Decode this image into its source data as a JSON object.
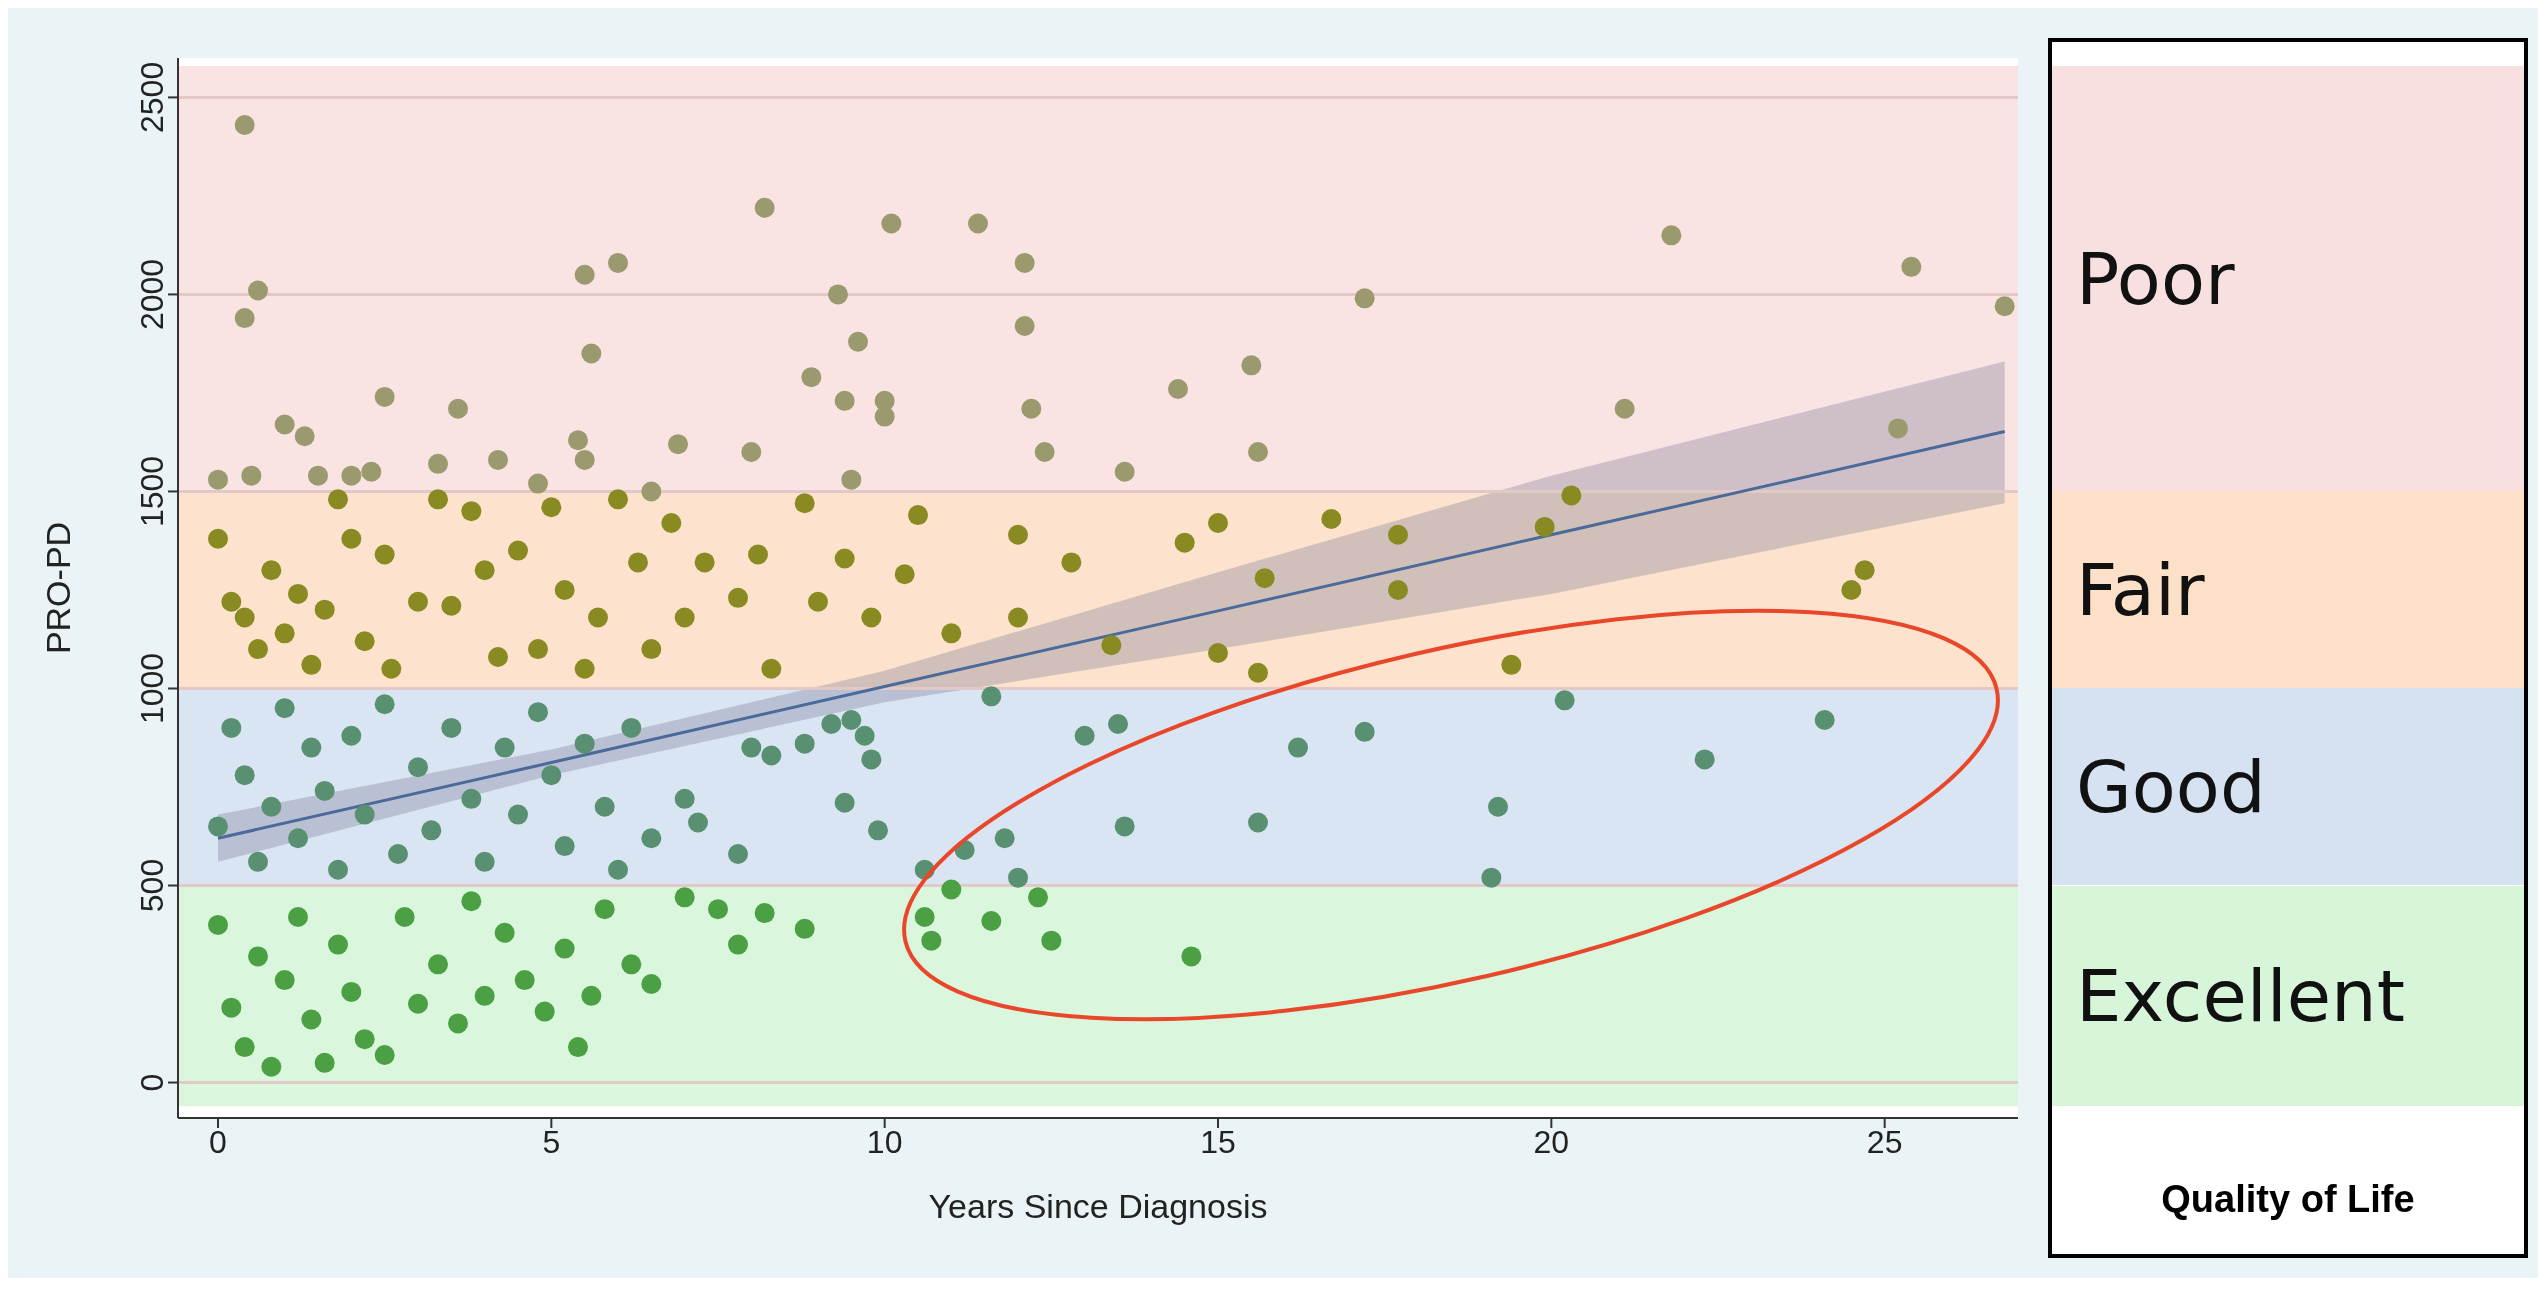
{
  "chart_data": {
    "type": "scatter",
    "xlabel": "Years Since Diagnosis",
    "ylabel": "PRO-PD",
    "xlim": [
      -0.6,
      27
    ],
    "xticks": [
      0,
      5,
      10,
      15,
      20,
      25
    ],
    "ylim": [
      -90,
      2600
    ],
    "yticks": [
      0,
      500,
      1000,
      1500,
      2000,
      2500
    ],
    "grid": "y",
    "marker": "circle",
    "bands": [
      {
        "axis": "y",
        "from": 1500,
        "to": 2580,
        "label": "Poor",
        "color": "#f8e0e0"
      },
      {
        "axis": "y",
        "from": 1000,
        "to": 1500,
        "label": "Fair",
        "color": "#fde0c8"
      },
      {
        "axis": "y",
        "from": 500,
        "to": 1000,
        "label": "Good",
        "color": "#d6e2f2"
      },
      {
        "axis": "y",
        "from": -60,
        "to": 500,
        "label": "Excellent",
        "color": "#d6f5d9"
      }
    ],
    "annotations": [
      "Quality of Life"
    ],
    "series": [
      {
        "color": "#9a9a6e",
        "x": [
          0.4,
          0.6,
          0.4,
          0,
          0.5,
          1,
          1.3,
          1.5,
          2,
          2.3,
          2.5,
          3.3,
          3.6,
          4.2,
          4.8,
          5.4,
          5.5,
          5.5,
          5.6,
          6,
          6.5,
          6.9,
          8,
          8.2,
          8.9,
          9.3,
          9.4,
          9.5,
          9.6,
          10,
          10,
          10.1,
          11.4,
          12.1,
          12.1,
          12.2,
          12.4,
          13.6,
          14.4,
          15.5,
          15.6,
          17.2,
          21.1,
          21.8,
          25.2,
          25.4,
          26.8
        ],
        "values": [
          2430,
          2010,
          1940,
          1530,
          1540,
          1670,
          1640,
          1540,
          1540,
          1550,
          1740,
          1570,
          1710,
          1580,
          1520,
          1630,
          1580,
          2050,
          1850,
          2080,
          1500,
          1620,
          1600,
          2220,
          1790,
          2000,
          1730,
          1530,
          1880,
          1730,
          1690,
          2180,
          2180,
          2080,
          1920,
          1710,
          1600,
          1550,
          1760,
          1820,
          1600,
          1990,
          1710,
          2150,
          1660,
          2070,
          1970
        ]
      },
      {
        "color": "#8a8a22",
        "x": [
          0,
          0.2,
          0.4,
          0.6,
          0.8,
          1,
          1.2,
          1.4,
          1.6,
          1.8,
          2,
          2.2,
          2.5,
          2.6,
          3,
          3.3,
          3.5,
          3.8,
          4,
          4.2,
          4.5,
          4.8,
          5,
          5.2,
          5.5,
          5.7,
          6,
          6.3,
          6.5,
          6.8,
          7,
          7.3,
          7.8,
          8.1,
          8.3,
          8.8,
          9,
          9.4,
          9.8,
          10.3,
          10.5,
          11,
          12,
          12,
          12.8,
          13.4,
          14.5,
          15,
          15,
          15.6,
          15.7,
          16.7,
          17.7,
          17.7,
          19.4,
          19.9,
          20.3,
          24.5,
          24.7
        ],
        "values": [
          1380,
          1220,
          1180,
          1100,
          1300,
          1140,
          1240,
          1060,
          1200,
          1480,
          1380,
          1120,
          1340,
          1050,
          1220,
          1480,
          1210,
          1450,
          1300,
          1080,
          1350,
          1100,
          1460,
          1250,
          1050,
          1180,
          1480,
          1320,
          1100,
          1420,
          1180,
          1320,
          1230,
          1340,
          1050,
          1470,
          1220,
          1330,
          1180,
          1290,
          1440,
          1140,
          1390,
          1180,
          1320,
          1110,
          1370,
          1420,
          1090,
          1040,
          1280,
          1430,
          1390,
          1250,
          1060,
          1410,
          1490,
          1250,
          1300
        ]
      },
      {
        "color": "#5a9072",
        "x": [
          0,
          0.2,
          0.4,
          0.6,
          0.8,
          1,
          1.2,
          1.4,
          1.6,
          1.8,
          2,
          2.2,
          2.5,
          2.7,
          3,
          3.2,
          3.5,
          3.8,
          4,
          4.3,
          4.5,
          4.8,
          5,
          5.2,
          5.5,
          5.8,
          6,
          6.2,
          6.5,
          7,
          7.2,
          7.8,
          8,
          8.3,
          8.8,
          9.2,
          9.5,
          9.7,
          9.8,
          9.9,
          9.4,
          10.6,
          11.2,
          11.8,
          11.6,
          12,
          13,
          13.5,
          13.6,
          15.6,
          16.2,
          17.2,
          19.2,
          19.1,
          20.2,
          22.3,
          24.1
        ],
        "values": [
          650,
          900,
          780,
          560,
          700,
          950,
          620,
          850,
          740,
          540,
          880,
          680,
          960,
          580,
          800,
          640,
          900,
          720,
          560,
          850,
          680,
          940,
          780,
          600,
          860,
          700,
          540,
          900,
          620,
          720,
          660,
          580,
          850,
          830,
          860,
          910,
          920,
          880,
          820,
          640,
          710,
          540,
          590,
          620,
          980,
          520,
          880,
          910,
          650,
          660,
          850,
          890,
          700,
          520,
          970,
          820,
          920
        ]
      },
      {
        "color": "#4aa042",
        "x": [
          0,
          0.2,
          0.4,
          0.6,
          0.8,
          1,
          1.2,
          1.4,
          1.6,
          1.8,
          2,
          2.2,
          2.5,
          2.8,
          3,
          3.3,
          3.6,
          3.8,
          4,
          4.3,
          4.6,
          4.9,
          5.2,
          5.4,
          5.6,
          5.8,
          6.2,
          6.5,
          7,
          7.5,
          7.8,
          8.2,
          8.8,
          10.6,
          10.7,
          11,
          11.6,
          12.3,
          12.5,
          14.6
        ],
        "values": [
          400,
          190,
          90,
          320,
          40,
          260,
          420,
          160,
          50,
          350,
          230,
          110,
          70,
          420,
          200,
          300,
          150,
          460,
          220,
          380,
          260,
          180,
          340,
          90,
          220,
          440,
          300,
          250,
          470,
          440,
          350,
          430,
          390,
          420,
          360,
          490,
          410,
          470,
          360,
          320
        ]
      },
      {
        "type": "line",
        "marker": "none",
        "color": "#4a6a9a",
        "x": [
          0,
          5,
          10,
          15,
          20,
          26.8
        ],
        "values": [
          620,
          812,
          1005,
          1197,
          1390,
          1652
        ],
        "lower": [
          560,
          780,
          965,
          1100,
          1240,
          1470
        ],
        "upper": [
          680,
          845,
          1045,
          1295,
          1540,
          1830
        ]
      }
    ]
  }
}
